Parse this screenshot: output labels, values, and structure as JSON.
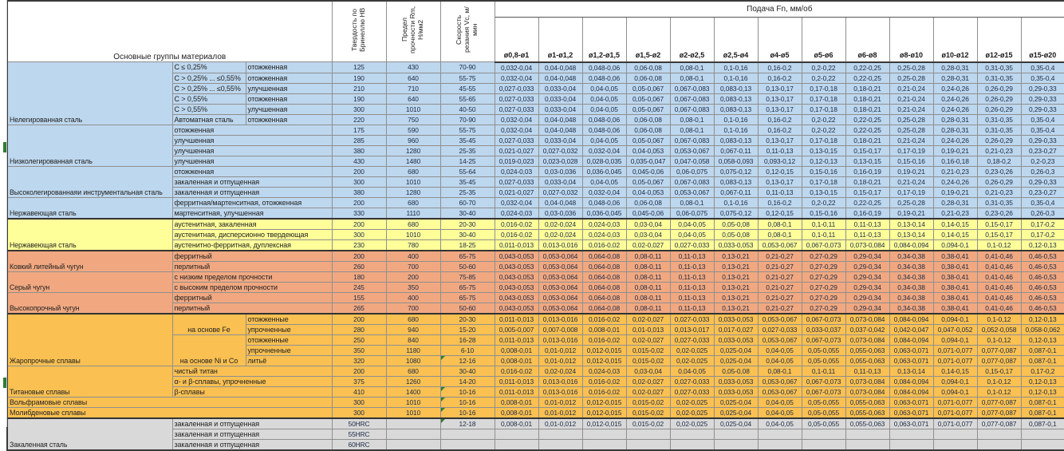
{
  "header": {
    "main_group": "Основные группы материалов",
    "hardness": "Твердость по Бринеллю HB",
    "strength": "Предел прочности Rm, Н/мм2",
    "speed": "Скорость резания Vc, м/мин",
    "feed": "Подача Fn, мм/об",
    "diameters": [
      "ø0,8-ø1",
      "ø1-ø1,2",
      "ø1,2-ø1,5",
      "ø1,5-ø2",
      "ø2-ø2,5",
      "ø2,5-ø4",
      "ø4-ø5",
      "ø5-ø6",
      "ø6-ø8",
      "ø8-ø10",
      "ø10-ø12",
      "ø12-ø15",
      "ø15-ø20"
    ]
  },
  "colors": {
    "blue": "#BDD7EE",
    "yellow": "#FFFF99",
    "salmon": "#F1A880",
    "gold": "#FAC051",
    "gray": "#D9D9D9",
    "comment_green": "#2e7d32"
  },
  "feed_patterns": {
    "A": [
      "0,032-0,04",
      "0,04-0,048",
      "0,048-0,06",
      "0,06-0,08",
      "0,08-0,1",
      "0,1-0,16",
      "0,16-0,2",
      "0,2-0,22",
      "0,22-0,25",
      "0,25-0,28",
      "0,28-0,31",
      "0,31-0,35",
      "0,35-0,4"
    ],
    "B": [
      "0,027-0,033",
      "0,033-0,04",
      "0,04-0,05",
      "0,05-0,067",
      "0,067-0,083",
      "0,083-0,13",
      "0,13-0,17",
      "0,17-0,18",
      "0,18-0,21",
      "0,21-0,24",
      "0,24-0,26",
      "0,26-0,29",
      "0,29-0,33"
    ],
    "C": [
      "0,021-0,027",
      "0,027-0,032",
      "0,032-0,04",
      "0,04-0,053",
      "0,053-0,067",
      "0,067-0,11",
      "0,11-0,13",
      "0,13-0,15",
      "0,15-0,17",
      "0,17-0,19",
      "0,19-0,21",
      "0,21-0,23",
      "0,23-0,27"
    ],
    "D": [
      "0,019-0,023",
      "0,023-0,028",
      "0,028-0,035",
      "0,035-0,047",
      "0,047-0,058",
      "0,058-0,093",
      "0,093-0,12",
      "0,12-0,13",
      "0,13-0,15",
      "0,15-0,16",
      "0,16-0,18",
      "0,18-0,2",
      "0,2-0,23"
    ],
    "E": [
      "0,024-0,03",
      "0,03-0,036",
      "0,036-0,045",
      "0,045-0,06",
      "0,06-0,075",
      "0,075-0,12",
      "0,12-0,15",
      "0,15-0,16",
      "0,16-0,19",
      "0,19-0,21",
      "0,21-0,23",
      "0,23-0,26",
      "0,26-0,3"
    ],
    "F": [
      "0,016-0,02",
      "0,02-0,024",
      "0,024-0,03",
      "0,03-0,04",
      "0,04-0,05",
      "0,05-0,08",
      "0,08-0,1",
      "0,1-0,11",
      "0,11-0,13",
      "0,13-0,14",
      "0,14-0,15",
      "0,15-0,17",
      "0,17-0,2"
    ],
    "G": [
      "0,011-0,013",
      "0,013-0,016",
      "0,016-0,02",
      "0,02-0,027",
      "0,027-0,033",
      "0,033-0,053",
      "0,053-0,067",
      "0,067-0,073",
      "0,073-0,084",
      "0,084-0,094",
      "0,094-0,1",
      "0,1-0,12",
      "0,12-0,13"
    ],
    "H": [
      "0,043-0,053",
      "0,053-0,064",
      "0,064-0,08",
      "0,08-0,11",
      "0,11-0,13",
      "0,13-0,21",
      "0,21-0,27",
      "0,27-0,29",
      "0,29-0,34",
      "0,34-0,38",
      "0,38-0,41",
      "0,41-0,46",
      "0,46-0,53"
    ],
    "I": [
      "0,005-0,007",
      "0,007-0,008",
      "0,008-0,01",
      "0,01-0,013",
      "0,013-0,017",
      "0,017-0,027",
      "0,027-0,033",
      "0,033-0,037",
      "0,037-0,042",
      "0,042-0,047",
      "0,047-0,052",
      "0,052-0,058",
      "0,058-0,062"
    ],
    "J": [
      "0,008-0,01",
      "0,01-0,012",
      "0,012-0,015",
      "0,015-0,02",
      "0,02-0,025",
      "0,025-0,04",
      "0,04-0,05",
      "0,05-0,055",
      "0,055-0,063",
      "0,063-0,071",
      "0,071-0,077",
      "0,077-0,087",
      "0,087-0,1"
    ]
  },
  "rows": [
    {
      "section": "blue",
      "group": {
        "label": "Нелегированная сталь",
        "span": 6
      },
      "sub1": "C ≤ 0,25%",
      "sub2": "отожженная",
      "hb": "125",
      "rm": "430",
      "vc": "70-90",
      "feed": "A"
    },
    {
      "sub1": "C > 0,25% ... ≤0,55%",
      "sub2": "отожженная",
      "hb": "190",
      "rm": "640",
      "vc": "55-75",
      "feed": "A"
    },
    {
      "sub1": "C > 0,25% ... ≤0,55%",
      "sub2": "улучшенная",
      "hb": "210",
      "rm": "710",
      "vc": "45-55",
      "feed": "B"
    },
    {
      "sub1": "C > 0,55%",
      "sub2": "отожженная",
      "hb": "190",
      "rm": "640",
      "vc": "55-65",
      "feed": "B"
    },
    {
      "sub1": "C > 0,55%",
      "sub2": "улучшенная",
      "hb": "300",
      "rm": "1010",
      "vc": "40-50",
      "feed": "B"
    },
    {
      "sub1": "Автоматная сталь",
      "sub2": "отожженная",
      "hb": "220",
      "rm": "750",
      "vc": "70-90",
      "feed": "A"
    },
    {
      "group": {
        "label": "Низколегированная сталь",
        "span": 4
      },
      "merged": "отожженная",
      "hb": "175",
      "rm": "590",
      "vc": "55-75",
      "feed": "A"
    },
    {
      "merged": "улучшенная",
      "hb": "285",
      "rm": "960",
      "vc": "35-45",
      "feed": "B"
    },
    {
      "merged": "улучшенная",
      "hb": "380",
      "rm": "1280",
      "vc": "25-35",
      "feed": "C"
    },
    {
      "merged": "улучшенная",
      "hb": "430",
      "rm": "1480",
      "vc": "14-25",
      "feed": "D"
    },
    {
      "group": {
        "label": "Высоколегированнаяи инструментальная сталь",
        "span": 3
      },
      "merged": "отожженная",
      "hb": "200",
      "rm": "680",
      "vc": "55-64",
      "feed": "E"
    },
    {
      "merged": "закаленная и отпущенная",
      "hb": "300",
      "rm": "1010",
      "vc": "35-45",
      "feed": "B"
    },
    {
      "merged": "закаленная и отпущенная",
      "hb": "380",
      "rm": "1280",
      "vc": "25-35",
      "feed": "C"
    },
    {
      "group": {
        "label": "Нержавеющая сталь",
        "span": 2
      },
      "merged": "ферритная/мартенситная, отожженная",
      "hb": "200",
      "rm": "680",
      "vc": "60-70",
      "feed": "A"
    },
    {
      "merged": "мартенситная, улучшенная",
      "hb": "330",
      "rm": "1110",
      "vc": "30-40",
      "feed": "E"
    },
    {
      "section": "yellow",
      "group": {
        "label": "Нержавеющая сталь",
        "span": 3
      },
      "merged": "аустенитная, закаленная",
      "hb": "200",
      "rm": "680",
      "vc": "20-30",
      "feed": "F"
    },
    {
      "merged": "аустенитная, дисперсионно твердеющая",
      "hb": "300",
      "rm": "1010",
      "vc": "30-40",
      "feed": "F"
    },
    {
      "merged": "аустенитно-ферритная, дуплексная",
      "hb": "230",
      "rm": "780",
      "vc": "18-25",
      "feed": "G"
    },
    {
      "section": "salmon",
      "group": {
        "label": "Ковкий литейный чугун",
        "span": 2
      },
      "merged": "ферритный",
      "hb": "200",
      "rm": "400",
      "vc": "65-75",
      "feed": "H"
    },
    {
      "merged": "перлитный",
      "hb": "260",
      "rm": "700",
      "vc": "50-60",
      "feed": "H"
    },
    {
      "group": {
        "label": "Серый чугун",
        "span": 2
      },
      "merged": "с низким пределом прочности",
      "hb": "180",
      "rm": "200",
      "vc": "75-85",
      "feed": "H"
    },
    {
      "merged": "с высоким пределом прочности",
      "hb": "245",
      "rm": "350",
      "vc": "65-75",
      "feed": "H"
    },
    {
      "group": {
        "label": "Высокопрочный чугун",
        "span": 2
      },
      "merged": "ферритный",
      "hb": "155",
      "rm": "400",
      "vc": "65-75",
      "feed": "H"
    },
    {
      "merged": "перлитный",
      "hb": "265",
      "rm": "700",
      "vc": "50-60",
      "feed": "H"
    },
    {
      "section": "gold",
      "group": {
        "label": "Жаропрочные сплавы",
        "span": 5
      },
      "sub1": {
        "label": "на основе Fe",
        "span": 2
      },
      "sub2": "отожженные",
      "hb": "200",
      "rm": "680",
      "vc": "20-30",
      "feed": "G"
    },
    {
      "sub2": "упрочненные",
      "hb": "280",
      "rm": "940",
      "vc": "15-20",
      "feed": "I"
    },
    {
      "sub1": {
        "label": "на основе Ni и Co",
        "span": 3
      },
      "sub2": "отожженные",
      "hb": "250",
      "rm": "840",
      "vc": "16-28",
      "feed": "G"
    },
    {
      "sub2": "упрочненные",
      "hb": "350",
      "rm": "1180",
      "vc": "6-10",
      "feed": "J"
    },
    {
      "sub2": "литьё",
      "hb": "320",
      "rm": "1080",
      "vc": "12-16",
      "flag": true,
      "feed": "J"
    },
    {
      "group": {
        "label": "Титановые сплавы",
        "span": 3
      },
      "merged": "чистый титан",
      "hb": "200",
      "rm": "680",
      "vc": "30-40",
      "feed": "F"
    },
    {
      "merged": "α- и β-сплавы, упрочненные",
      "hb": "375",
      "rm": "1260",
      "vc": "14-20",
      "feed": "G"
    },
    {
      "merged": "β-сплавы",
      "hb": "410",
      "rm": "1400",
      "vc": "10-16",
      "flag": true,
      "feed": "G"
    },
    {
      "full": "Вольфрамовые сплавы",
      "hb": "300",
      "rm": "1010",
      "vc": "10-16",
      "flag": true,
      "feed": "J"
    },
    {
      "full": "Молибденовые сплавы",
      "hb": "300",
      "rm": "1010",
      "vc": "10-16",
      "flag": true,
      "feed": "J"
    },
    {
      "section": "gray",
      "group": {
        "label": "Закаленная сталь",
        "span": 3
      },
      "merged": "закаленная и отпущенная",
      "hb": "50HRC",
      "rm": "",
      "vc": "12-18",
      "flag": true,
      "feed": "J"
    },
    {
      "merged": "закаленная и отпущенная",
      "hb": "55HRC",
      "rm": "",
      "vc": "",
      "feed": null
    },
    {
      "merged": "закаленная и отпущенная",
      "hb": "60HRC",
      "rm": "",
      "vc": "",
      "feed": null
    }
  ]
}
